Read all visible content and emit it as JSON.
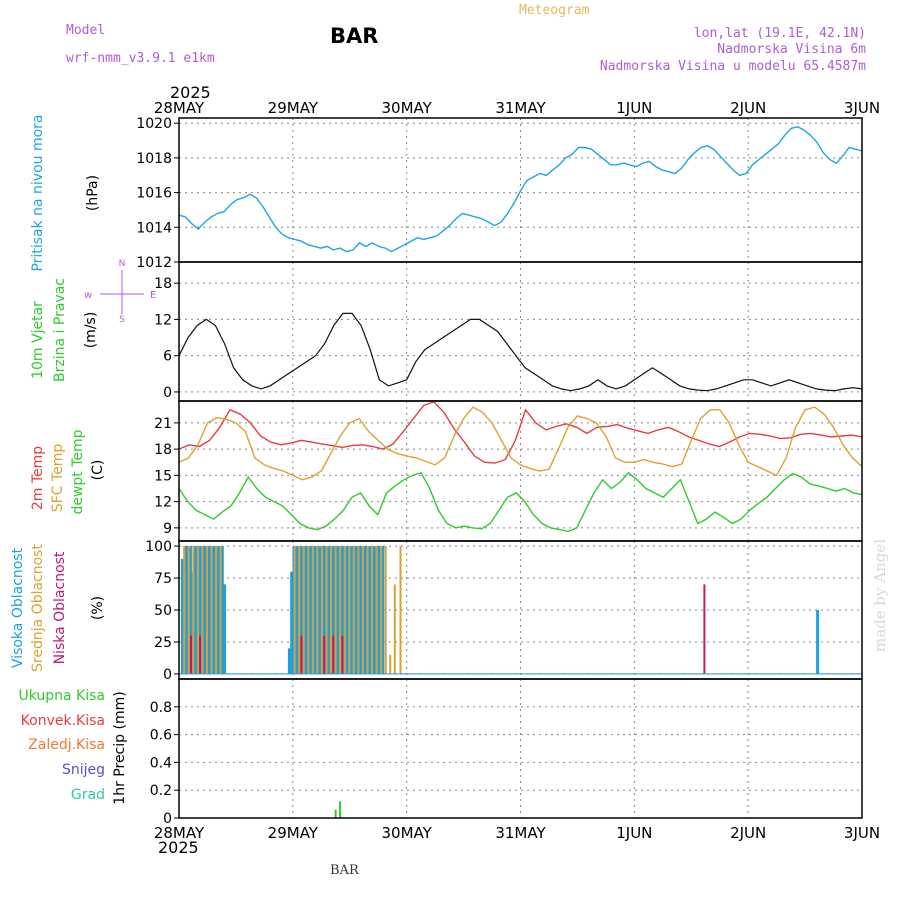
{
  "header": {
    "model_label": "Model",
    "model_name": "wrf-nmm_v3.9.1 e1km",
    "place": "BAR",
    "title": "Meteogram",
    "coords": "lon,lat (19.1E, 42.1N)",
    "elevation": "Nadmorska Visina 6m",
    "model_elevation": "Nadmorska Visina u modelu 65.4587m",
    "year_top": "2025",
    "year_bottom": "2025",
    "footer": "BAR",
    "watermark": "made by Angel"
  },
  "colors": {
    "pressure": "#1fa5e0",
    "temp2m": "#e83c3c",
    "sfc": "#e0a030",
    "dewpt": "#2ecc2e",
    "high_cloud": "#1f9fe0",
    "mid_cloud": "#e0a030",
    "low_cloud": "#c0186a",
    "precip": "#2ecc2e",
    "title": "#e6b85c",
    "purple": "#b05cd8"
  },
  "chart_data": [
    {
      "type": "line",
      "panel": "pressure",
      "ylabel_main": "Pritisak na nivou mora",
      "unit": "(hPa)",
      "x_labels": [
        "28MAY",
        "29MAY",
        "30MAY",
        "31MAY",
        "1JUN",
        "2JUN",
        "3JUN"
      ],
      "ylim": [
        1012,
        1020.3
      ],
      "yticks": [
        1012,
        1014,
        1016,
        1018,
        1020
      ],
      "grid": true,
      "series": [
        {
          "values": [
            1014.7,
            1014.6,
            1014.2,
            1013.9,
            1014.3,
            1014.6,
            1014.8,
            1014.9,
            1015.3,
            1015.6,
            1015.7,
            1015.9,
            1015.7,
            1015.2,
            1014.6,
            1014.0,
            1013.6,
            1013.4,
            1013.3,
            1013.2,
            1013.0,
            1012.9,
            1012.8,
            1012.9,
            1012.7,
            1012.8,
            1012.6,
            1012.7,
            1013.1,
            1012.9,
            1013.1,
            1012.9,
            1012.8,
            1012.6,
            1012.8,
            1013.0,
            1013.2,
            1013.4,
            1013.3,
            1013.4,
            1013.5,
            1013.8,
            1014.1,
            1014.5,
            1014.8,
            1014.7,
            1014.6,
            1014.5,
            1014.3,
            1014.1,
            1014.3,
            1014.8,
            1015.4,
            1016.1,
            1016.7,
            1016.9,
            1017.1,
            1017.0,
            1017.3,
            1017.6,
            1018.0,
            1018.2,
            1018.6,
            1018.6,
            1018.5,
            1018.2,
            1017.9,
            1017.6,
            1017.6,
            1017.7,
            1017.6,
            1017.5,
            1017.7,
            1017.8,
            1017.5,
            1017.3,
            1017.2,
            1017.1,
            1017.4,
            1017.9,
            1018.3,
            1018.6,
            1018.7,
            1018.5,
            1018.1,
            1017.7,
            1017.3,
            1017.0,
            1017.1,
            1017.6,
            1017.9,
            1018.2,
            1018.5,
            1018.8,
            1019.3,
            1019.7,
            1019.8,
            1019.6,
            1019.3,
            1018.9,
            1018.3,
            1017.9,
            1017.7,
            1018.1,
            1018.6,
            1018.5,
            1018.4
          ]
        }
      ]
    },
    {
      "type": "line",
      "panel": "wind",
      "ylabel_main": "10m Vjetar",
      "ylabel_sub": "Brzina i Pravac",
      "unit": "(m/s)",
      "compass": {
        "west": "w",
        "east": "E",
        "north": "N",
        "south": "S"
      },
      "x_labels": [
        "28MAY",
        "29MAY",
        "30MAY",
        "31MAY",
        "1JUN",
        "2JUN",
        "3JUN"
      ],
      "ylim": [
        -1.5,
        21.5
      ],
      "yticks": [
        0,
        6,
        12,
        18
      ],
      "grid": true,
      "series": [
        {
          "values": [
            6,
            9,
            11,
            12,
            11,
            8,
            4,
            2,
            1,
            0.5,
            1,
            2,
            3,
            4,
            5,
            6,
            8,
            11,
            13,
            13,
            11,
            7,
            2,
            1,
            1.5,
            2,
            5,
            7,
            8,
            9,
            10,
            11,
            12,
            12,
            11,
            10,
            8,
            6,
            4,
            3,
            2,
            1,
            0.5,
            0.2,
            0.5,
            1,
            2,
            1,
            0.5,
            1,
            2,
            3,
            4,
            3,
            2,
            1,
            0.5,
            0.3,
            0.2,
            0.5,
            1,
            1.5,
            2,
            2,
            1.5,
            1,
            1.5,
            2,
            1.5,
            1,
            0.5,
            0.3,
            0.2,
            0.5,
            0.7,
            0.5
          ]
        }
      ]
    },
    {
      "type": "line",
      "panel": "temperature",
      "ylabels": [
        "2m Temp",
        "SFC Temp",
        "dewpt Temp"
      ],
      "unit": "(C)",
      "x_labels": [
        "28MAY",
        "29MAY",
        "30MAY",
        "31MAY",
        "1JUN",
        "2JUN",
        "3JUN"
      ],
      "ylim": [
        7.5,
        23.5
      ],
      "yticks": [
        9,
        12,
        15,
        18,
        21
      ],
      "grid": true,
      "series": [
        {
          "values": [
            18.0,
            18.5,
            18.3,
            19.0,
            20.5,
            22.5,
            22.0,
            21.0,
            19.5,
            18.8,
            18.5,
            18.7,
            19.0,
            18.8,
            18.6,
            18.4,
            18.2,
            18.4,
            18.5,
            18.3,
            18.0,
            18.6,
            20.0,
            21.5,
            23.0,
            23.4,
            22.2,
            20.3,
            18.8,
            17.2,
            16.5,
            16.4,
            16.8,
            19.0,
            22.5,
            21.0,
            20.2,
            20.6,
            20.9,
            20.5,
            19.8,
            20.5,
            20.6,
            20.8,
            20.4,
            20.1,
            19.8,
            20.2,
            20.5,
            20.0,
            19.4,
            19.0,
            18.6,
            18.3,
            18.8,
            19.4,
            19.8,
            19.7,
            19.5,
            19.2,
            19.3,
            19.7,
            19.8,
            19.6,
            19.4,
            19.5,
            19.6,
            19.4
          ]
        },
        {
          "values": [
            16.5,
            17.0,
            18.5,
            21.0,
            21.6,
            21.4,
            21.0,
            20.0,
            17.0,
            16.2,
            15.8,
            15.5,
            15.0,
            14.5,
            14.8,
            15.5,
            17.5,
            19.5,
            21.0,
            21.5,
            20.0,
            19.0,
            18.0,
            17.5,
            17.2,
            17.0,
            16.6,
            16.2,
            17.0,
            19.5,
            21.5,
            22.8,
            22.2,
            21.0,
            19.0,
            17.0,
            16.2,
            15.8,
            15.5,
            15.7,
            18.0,
            20.5,
            21.8,
            21.5,
            21.0,
            19.5,
            17.0,
            16.5,
            16.5,
            16.8,
            16.5,
            16.3,
            16.0,
            16.3,
            19.0,
            21.5,
            22.5,
            22.5,
            21.0,
            18.5,
            16.5,
            16.0,
            15.5,
            15.0,
            17.0,
            20.5,
            22.5,
            22.8,
            22.0,
            20.5,
            18.5,
            17.0,
            16.0
          ]
        },
        {
          "values": [
            13.5,
            12.0,
            11.0,
            10.5,
            10.0,
            10.8,
            11.5,
            13.0,
            14.8,
            13.5,
            12.5,
            12.0,
            11.5,
            10.5,
            9.5,
            9.0,
            8.8,
            9.2,
            10.0,
            11.0,
            12.5,
            13.0,
            11.5,
            10.5,
            13.0,
            13.8,
            14.5,
            15.0,
            15.3,
            13.5,
            11.0,
            9.5,
            9.0,
            9.2,
            9.0,
            8.9,
            9.5,
            11.0,
            12.5,
            13.0,
            12.0,
            10.5,
            9.5,
            9.0,
            8.8,
            8.6,
            9.0,
            11.0,
            13.0,
            14.5,
            13.5,
            14.2,
            15.3,
            14.5,
            13.5,
            13.0,
            12.5,
            13.5,
            14.5,
            12.0,
            9.5,
            10.0,
            10.8,
            10.2,
            9.5,
            10.0,
            11.0,
            11.8,
            12.5,
            13.5,
            14.5,
            15.2,
            14.8,
            14.0,
            13.8,
            13.5,
            13.2,
            13.5,
            13.0,
            12.8
          ]
        }
      ]
    },
    {
      "type": "bar",
      "panel": "clouds",
      "ylabels": [
        "Visoka Oblacnost",
        "Srednja Oblacnost",
        "Niska Oblacnost"
      ],
      "unit": "(%)",
      "x_labels": [
        "28MAY",
        "29MAY",
        "30MAY",
        "31MAY",
        "1JUN",
        "2JUN",
        "3JUN"
      ],
      "ylim": [
        -4,
        104
      ],
      "yticks": [
        0,
        25,
        50,
        75,
        100
      ],
      "grid": true,
      "series": [
        {
          "name": "Visoka Oblacnost",
          "x": [
            0.03,
            0.06,
            0.08,
            0.1,
            0.12,
            0.14,
            0.16,
            0.18,
            0.2,
            0.22,
            0.24,
            0.26,
            0.28,
            0.3,
            0.32,
            0.34,
            0.36,
            0.38,
            0.4,
            0.97,
            0.99,
            1.01,
            1.03,
            1.05,
            1.07,
            1.09,
            1.11,
            1.13,
            1.15,
            1.17,
            1.19,
            1.21,
            1.23,
            1.25,
            1.27,
            1.29,
            1.31,
            1.33,
            1.35,
            1.37,
            1.39,
            1.41,
            1.43,
            1.45,
            1.47,
            1.49,
            1.51,
            1.53,
            1.55,
            1.57,
            1.59,
            1.61,
            1.63,
            1.65,
            1.67,
            1.69,
            1.71,
            1.73,
            1.75,
            1.77,
            1.79,
            5.61
          ],
          "values": [
            90,
            100,
            100,
            100,
            80,
            100,
            100,
            100,
            100,
            100,
            100,
            100,
            100,
            100,
            100,
            100,
            100,
            100,
            70,
            20,
            80,
            100,
            100,
            100,
            100,
            100,
            100,
            100,
            100,
            100,
            100,
            100,
            100,
            100,
            100,
            100,
            100,
            100,
            100,
            100,
            100,
            100,
            100,
            100,
            100,
            100,
            100,
            100,
            100,
            100,
            100,
            100,
            100,
            100,
            100,
            100,
            100,
            100,
            100,
            100,
            100,
            50
          ]
        },
        {
          "name": "Srednja Oblacnost",
          "x": [
            0.05,
            0.09,
            0.13,
            0.17,
            0.21,
            0.25,
            0.29,
            0.33,
            0.37,
            1.02,
            1.06,
            1.1,
            1.14,
            1.18,
            1.22,
            1.26,
            1.3,
            1.34,
            1.38,
            1.42,
            1.46,
            1.5,
            1.54,
            1.58,
            1.62,
            1.66,
            1.7,
            1.74,
            1.78,
            1.82,
            1.86,
            1.9,
            1.95
          ],
          "values": [
            100,
            100,
            100,
            100,
            100,
            100,
            100,
            100,
            100,
            100,
            100,
            100,
            100,
            100,
            100,
            100,
            100,
            100,
            100,
            100,
            100,
            100,
            100,
            100,
            100,
            100,
            100,
            100,
            100,
            100,
            15,
            70,
            100
          ]
        },
        {
          "name": "Niska Oblacnost",
          "x": [
            0.11,
            0.19,
            1.08,
            1.28,
            1.36,
            1.44,
            4.62
          ],
          "values": [
            30,
            30,
            30,
            30,
            30,
            30,
            70
          ]
        }
      ]
    },
    {
      "type": "bar",
      "panel": "precip",
      "ylabels": [
        "Ukupna Kisa",
        "Konvek.Kisa",
        "Zaledj.Kisa",
        "Snijeg",
        "Grad"
      ],
      "unit": "1hr Precip (mm)",
      "x_labels": [
        "28MAY",
        "29MAY",
        "30MAY",
        "31MAY",
        "1JUN",
        "2JUN",
        "3JUN"
      ],
      "ylim": [
        0,
        1.0
      ],
      "yticks": [
        0,
        0.2,
        0.4,
        0.6,
        0.8
      ],
      "grid": true,
      "series": [
        {
          "name": "Ukupna Kisa",
          "x": [
            1.38,
            1.42
          ],
          "values": [
            0.06,
            0.12
          ]
        }
      ]
    }
  ]
}
